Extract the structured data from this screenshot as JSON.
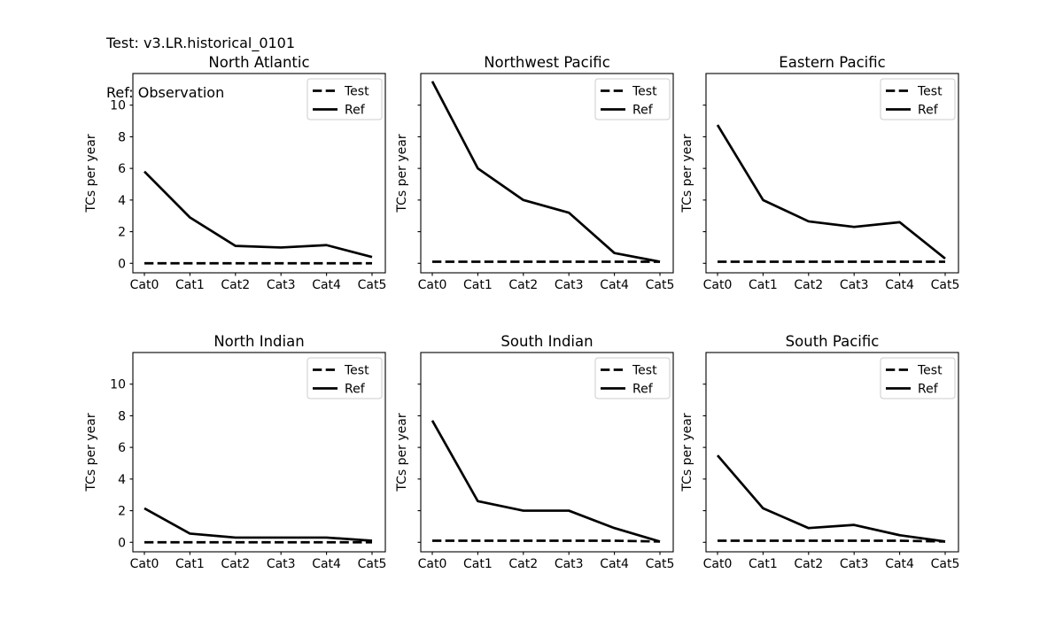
{
  "header": {
    "line1": "Test: v3.LR.historical_0101",
    "line2": "Ref: Observation"
  },
  "colors": {
    "foreground": "#000000",
    "background": "#ffffff",
    "legend_border": "#cccccc"
  },
  "layout": {
    "rows": 2,
    "cols": 3,
    "grid": false,
    "legend_position": "upper right"
  },
  "chart_data": [
    {
      "type": "line",
      "title": "North Atlantic",
      "ylabel": "TCs per year",
      "categories": [
        "Cat0",
        "Cat1",
        "Cat2",
        "Cat3",
        "Cat4",
        "Cat5"
      ],
      "yticks": [
        0,
        2,
        4,
        6,
        8,
        10
      ],
      "ytick_labels_visible": true,
      "ylim": [
        -0.6,
        12.0
      ],
      "legend": [
        "Test",
        "Ref"
      ],
      "series": [
        {
          "name": "Test",
          "line_style": "dashed",
          "values": [
            0,
            0,
            0,
            0,
            0,
            0
          ]
        },
        {
          "name": "Ref",
          "line_style": "solid",
          "values": [
            5.8,
            2.9,
            1.1,
            1.0,
            1.15,
            0.4
          ]
        }
      ]
    },
    {
      "type": "line",
      "title": "Northwest Pacific",
      "ylabel": "TCs per year",
      "categories": [
        "Cat0",
        "Cat1",
        "Cat2",
        "Cat3",
        "Cat4",
        "Cat5"
      ],
      "yticks": [
        0,
        2,
        4,
        6,
        8,
        10
      ],
      "ytick_labels_visible": false,
      "ylim": [
        -0.6,
        12.0
      ],
      "legend": [
        "Test",
        "Ref"
      ],
      "series": [
        {
          "name": "Test",
          "line_style": "dashed",
          "values": [
            0.1,
            0.1,
            0.1,
            0.1,
            0.1,
            0.1
          ]
        },
        {
          "name": "Ref",
          "line_style": "solid",
          "values": [
            11.5,
            6.0,
            4.0,
            3.2,
            0.65,
            0.1
          ]
        }
      ]
    },
    {
      "type": "line",
      "title": "Eastern Pacific",
      "ylabel": "TCs per year",
      "categories": [
        "Cat0",
        "Cat1",
        "Cat2",
        "Cat3",
        "Cat4",
        "Cat5"
      ],
      "yticks": [
        0,
        2,
        4,
        6,
        8,
        10
      ],
      "ytick_labels_visible": false,
      "ylim": [
        -0.6,
        12.0
      ],
      "legend": [
        "Test",
        "Ref"
      ],
      "series": [
        {
          "name": "Test",
          "line_style": "dashed",
          "values": [
            0.1,
            0.1,
            0.1,
            0.1,
            0.1,
            0.1
          ]
        },
        {
          "name": "Ref",
          "line_style": "solid",
          "values": [
            8.75,
            4.0,
            2.65,
            2.3,
            2.6,
            0.3
          ]
        }
      ]
    },
    {
      "type": "line",
      "title": "North Indian",
      "ylabel": "TCs per year",
      "categories": [
        "Cat0",
        "Cat1",
        "Cat2",
        "Cat3",
        "Cat4",
        "Cat5"
      ],
      "yticks": [
        0,
        2,
        4,
        6,
        8,
        10
      ],
      "ytick_labels_visible": true,
      "ylim": [
        -0.6,
        12.0
      ],
      "legend": [
        "Test",
        "Ref"
      ],
      "series": [
        {
          "name": "Test",
          "line_style": "dashed",
          "values": [
            0,
            0,
            0,
            0,
            0,
            0
          ]
        },
        {
          "name": "Ref",
          "line_style": "solid",
          "values": [
            2.15,
            0.55,
            0.3,
            0.3,
            0.3,
            0.1
          ]
        }
      ]
    },
    {
      "type": "line",
      "title": "South Indian",
      "ylabel": "TCs per year",
      "categories": [
        "Cat0",
        "Cat1",
        "Cat2",
        "Cat3",
        "Cat4",
        "Cat5"
      ],
      "yticks": [
        0,
        2,
        4,
        6,
        8,
        10
      ],
      "ytick_labels_visible": false,
      "ylim": [
        -0.6,
        12.0
      ],
      "legend": [
        "Test",
        "Ref"
      ],
      "series": [
        {
          "name": "Test",
          "line_style": "dashed",
          "values": [
            0.1,
            0.1,
            0.1,
            0.1,
            0.1,
            0.05
          ]
        },
        {
          "name": "Ref",
          "line_style": "solid",
          "values": [
            7.7,
            2.6,
            2.0,
            2.0,
            0.9,
            0.05
          ]
        }
      ]
    },
    {
      "type": "line",
      "title": "South Pacific",
      "ylabel": "TCs per year",
      "categories": [
        "Cat0",
        "Cat1",
        "Cat2",
        "Cat3",
        "Cat4",
        "Cat5"
      ],
      "yticks": [
        0,
        2,
        4,
        6,
        8,
        10
      ],
      "ytick_labels_visible": false,
      "ylim": [
        -0.6,
        12.0
      ],
      "legend": [
        "Test",
        "Ref"
      ],
      "series": [
        {
          "name": "Test",
          "line_style": "dashed",
          "values": [
            0.1,
            0.1,
            0.1,
            0.1,
            0.1,
            0.05
          ]
        },
        {
          "name": "Ref",
          "line_style": "solid",
          "values": [
            5.5,
            2.15,
            0.9,
            1.1,
            0.45,
            0.05
          ]
        }
      ]
    }
  ]
}
